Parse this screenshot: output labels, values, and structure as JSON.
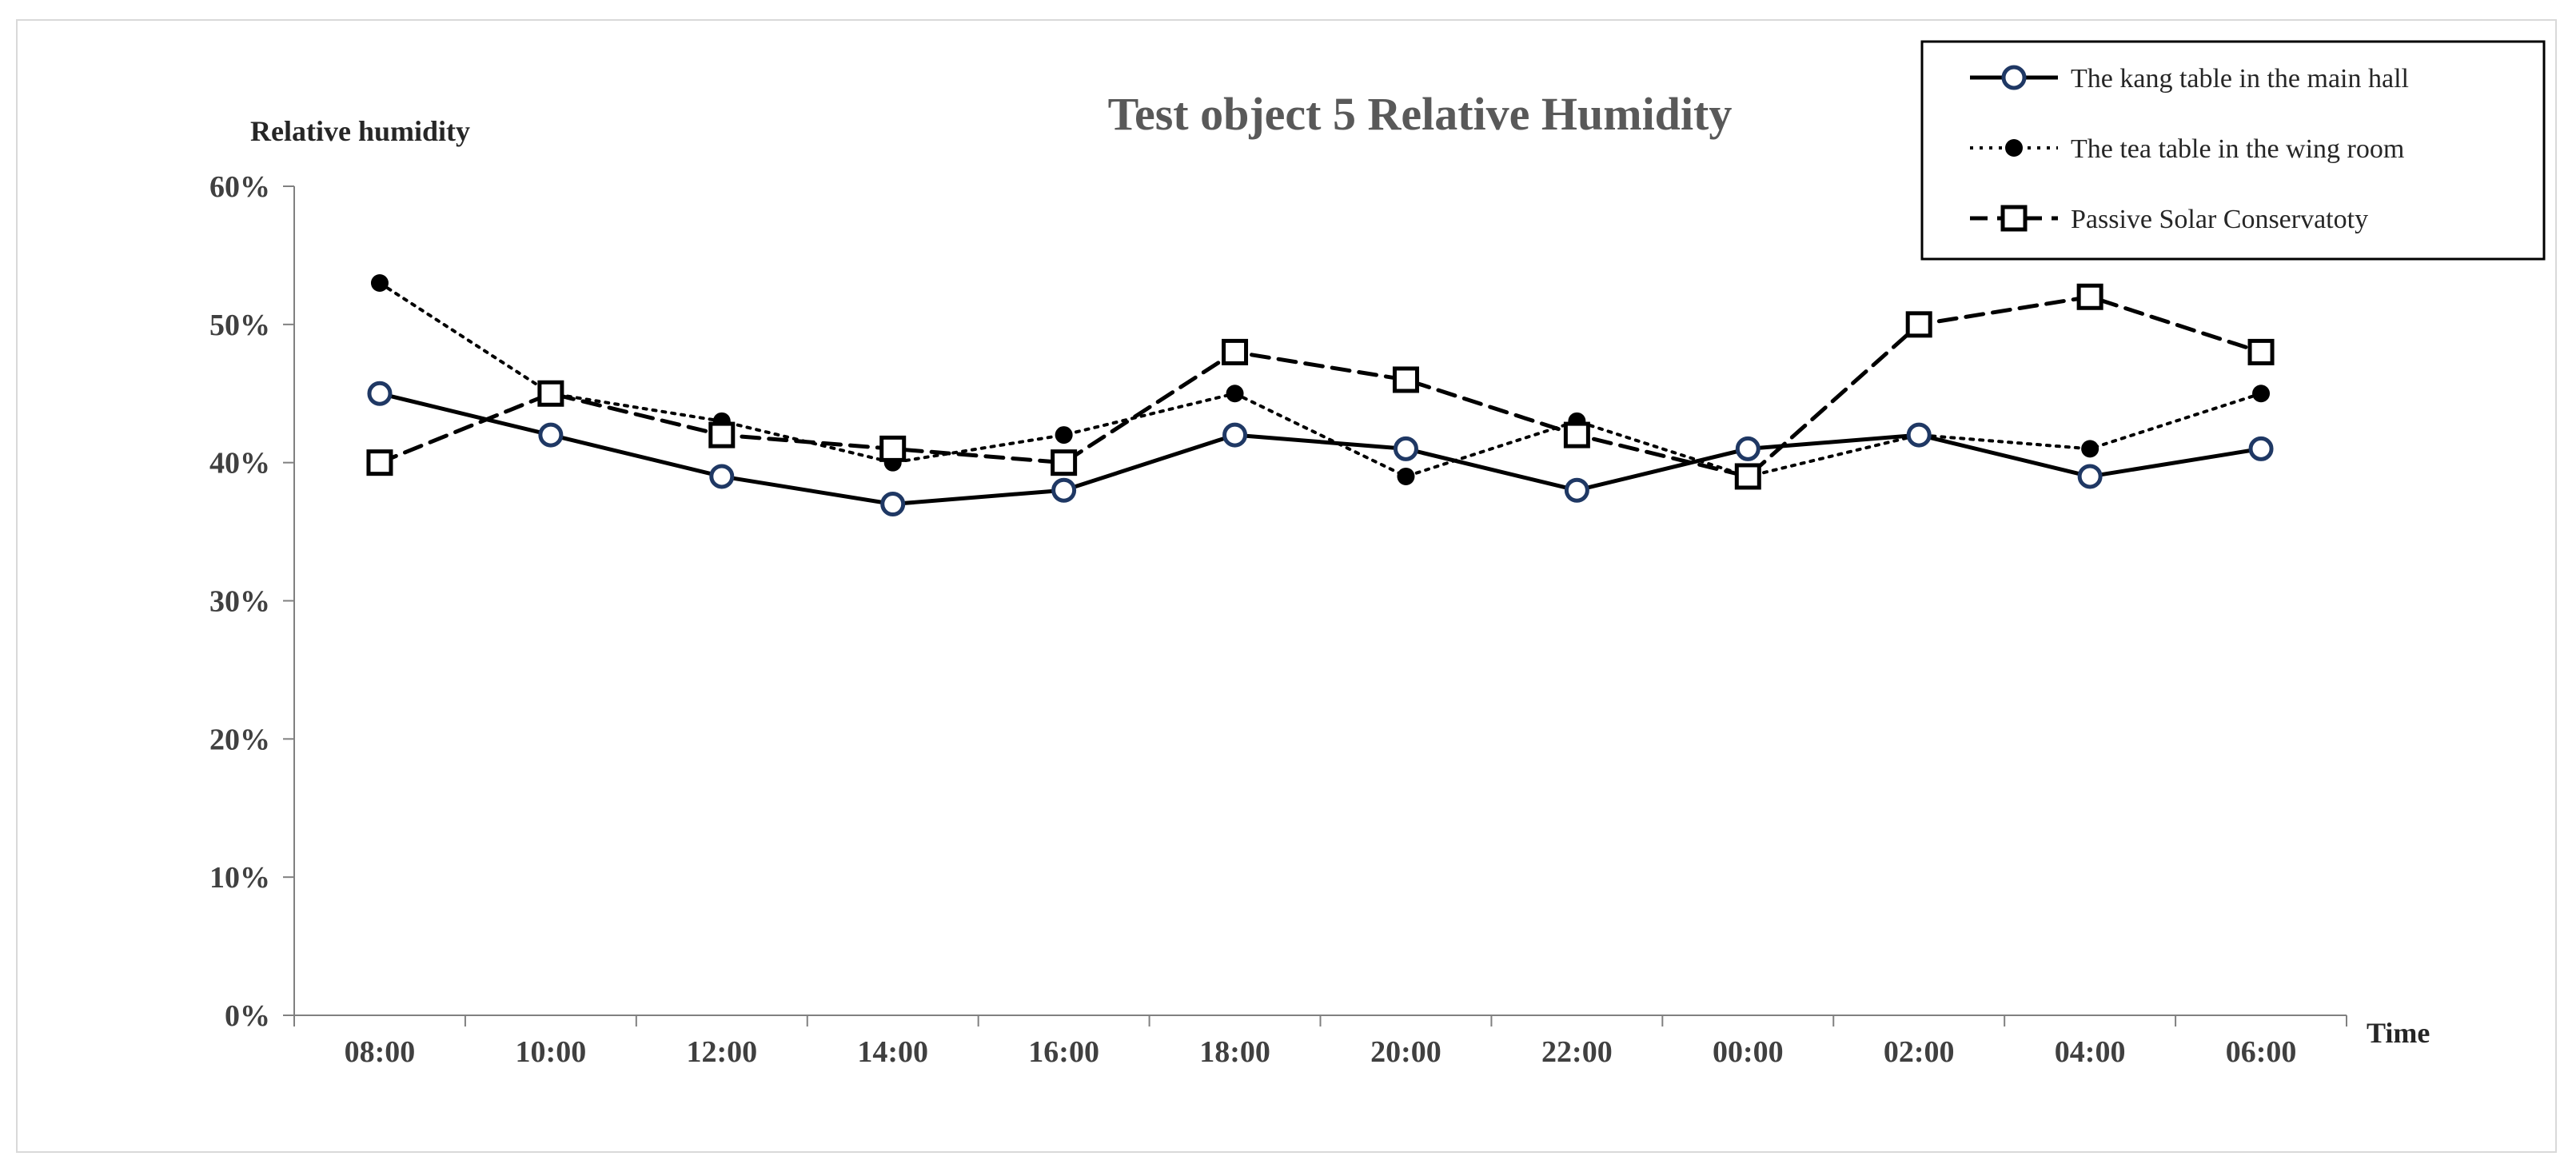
{
  "chart_data": {
    "type": "line",
    "title": "Test object 5 Relative Humidity",
    "ylabel": "Relative  humidity",
    "xlabel": "Time",
    "ylim": [
      0,
      60
    ],
    "yticks": [
      0,
      10,
      20,
      30,
      40,
      50,
      60
    ],
    "ytick_labels": [
      "0%",
      "10%",
      "20%",
      "30%",
      "40%",
      "50%",
      "60%"
    ],
    "categories": [
      "08:00",
      "10:00",
      "12:00",
      "14:00",
      "16:00",
      "18:00",
      "20:00",
      "22:00",
      "00:00",
      "02:00",
      "04:00",
      "06:00"
    ],
    "grid": false,
    "legend_position": "top-right",
    "series": [
      {
        "name": "The kang table in the main hall",
        "style": "solid",
        "marker": "open-circle",
        "values": [
          45,
          42,
          39,
          37,
          38,
          42,
          41,
          38,
          41,
          42,
          39,
          41
        ]
      },
      {
        "name": "The tea table in the wing room",
        "style": "dotted",
        "marker": "filled-dot",
        "values": [
          53,
          45,
          43,
          40,
          42,
          45,
          39,
          43,
          39,
          42,
          41,
          45
        ]
      },
      {
        "name": "Passive Solar Conservatoty",
        "style": "dashed",
        "marker": "open-square",
        "values": [
          40,
          45,
          42,
          41,
          40,
          48,
          46,
          42,
          39,
          50,
          52,
          48
        ]
      }
    ]
  },
  "colors": {
    "line": "#000000",
    "circle_edge": "#1f3864",
    "axis": "#808080"
  }
}
